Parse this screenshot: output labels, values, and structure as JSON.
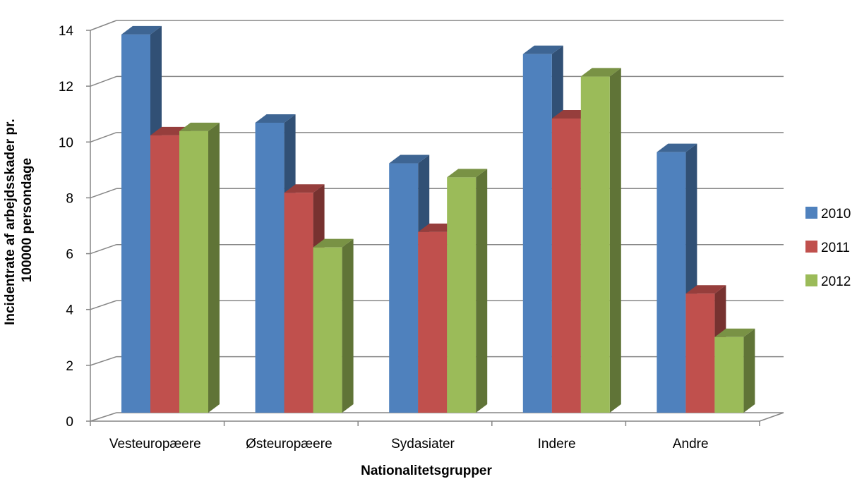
{
  "chart_data": {
    "type": "bar",
    "title": "",
    "xlabel": "Nationalitetsgrupper",
    "ylabel_lines": [
      "Incidentrate af arbejdsskader pr.",
      "100000 persondage"
    ],
    "categories": [
      "Vesteuropæere",
      "Østeuropæere",
      "Sydasiater",
      "Indere",
      "Andre"
    ],
    "yticks": [
      "0",
      "2",
      "4",
      "6",
      "8",
      "10",
      "12",
      "14"
    ],
    "ylim": [
      0,
      14
    ],
    "grid": true,
    "three_d": true,
    "legend_position": "right",
    "series": [
      {
        "name": "2010",
        "color": "#4F81BD",
        "values": [
          13.5,
          10.35,
          8.9,
          12.8,
          9.3
        ]
      },
      {
        "name": "2011",
        "color": "#C0504D",
        "values": [
          9.9,
          7.85,
          6.45,
          10.5,
          4.25
        ]
      },
      {
        "name": "2012",
        "color": "#9BBB59",
        "values": [
          10.05,
          5.9,
          8.4,
          12.0,
          2.7
        ]
      }
    ]
  }
}
